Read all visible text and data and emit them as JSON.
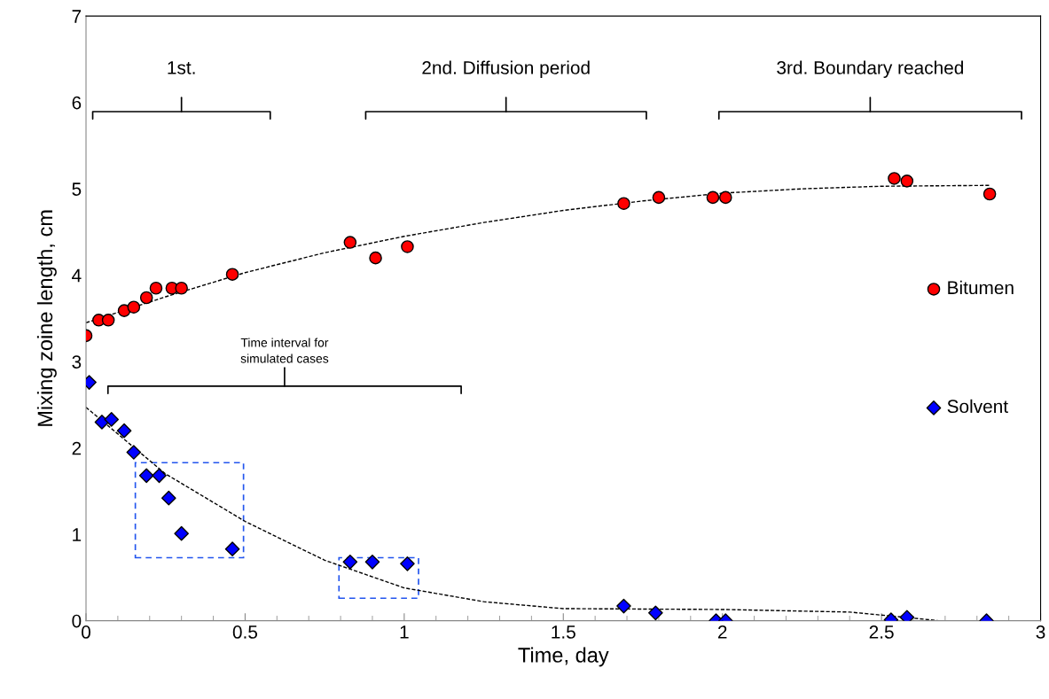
{
  "chart_data": {
    "type": "scatter",
    "xlabel": "Time, day",
    "ylabel": "Mixing zoine length, cm",
    "series": [
      {
        "name": "Bitumen",
        "marker": "circle",
        "color": "#ff0000",
        "x": [
          0,
          0.04,
          0.07,
          0.12,
          0.15,
          0.19,
          0.22,
          0.27,
          0.3,
          0.46,
          0.83,
          0.91,
          1.01,
          1.69,
          1.8,
          1.97,
          2.01,
          2.54,
          2.58,
          2.84
        ],
        "values": [
          3.3,
          3.48,
          3.48,
          3.59,
          3.63,
          3.74,
          3.85,
          3.85,
          3.85,
          4.01,
          4.38,
          4.2,
          4.33,
          4.83,
          4.9,
          4.9,
          4.9,
          5.12,
          5.09,
          4.94
        ]
      },
      {
        "name": "Solvent",
        "marker": "diamond",
        "color": "#0000ff",
        "x": [
          0.01,
          0.05,
          0.08,
          0.12,
          0.15,
          0.19,
          0.23,
          0.26,
          0.3,
          0.46,
          0.83,
          0.9,
          1.01,
          1.69,
          1.79,
          1.98,
          2.01,
          2.53,
          2.58,
          2.83
        ],
        "values": [
          2.76,
          2.3,
          2.33,
          2.2,
          1.95,
          1.68,
          1.68,
          1.42,
          1.01,
          0.83,
          0.68,
          0.68,
          0.66,
          0.17,
          0.09,
          0,
          0,
          0.01,
          0.04,
          0
        ]
      },
      {
        "type": "line",
        "line_style": "dashed",
        "color": "#000000",
        "x": [
          0,
          0.25,
          0.5,
          0.75,
          1,
          1.25,
          1.5,
          1.75,
          2,
          2.25,
          2.5,
          2.84
        ],
        "values": [
          3.45,
          3.75,
          4.03,
          4.26,
          4.45,
          4.61,
          4.75,
          4.86,
          4.95,
          5.0,
          5.03,
          5.04
        ]
      },
      {
        "type": "line",
        "line_style": "dashed",
        "color": "#000000",
        "x": [
          0,
          0.25,
          0.5,
          0.75,
          1,
          1.25,
          1.5,
          2,
          2.4,
          2.6,
          2.68
        ],
        "values": [
          2.47,
          1.7,
          1.15,
          0.7,
          0.38,
          0.22,
          0.14,
          0.13,
          0.1,
          0.03,
          0
        ]
      }
    ],
    "annotations": [
      "1st.",
      "2nd. Diffusion period",
      "3rd. Boundary reached",
      "Time interval for\nsimulated cases"
    ],
    "xlim": [
      0,
      3
    ],
    "xticks": [
      0,
      0.5,
      1,
      1.5,
      2,
      2.5,
      3
    ],
    "ylim": [
      0,
      7
    ],
    "yticks": [
      0,
      1,
      2,
      3,
      4,
      5,
      6,
      7
    ],
    "grid": false,
    "legend": "right"
  }
}
